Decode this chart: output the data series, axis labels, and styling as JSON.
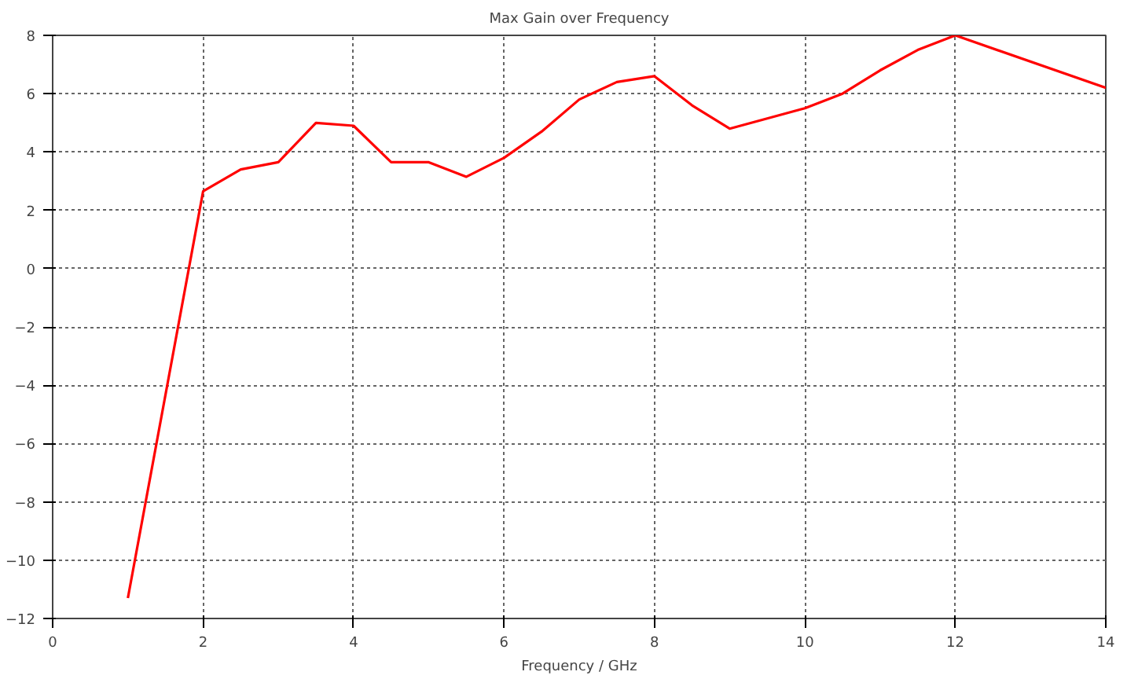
{
  "chart_data": {
    "type": "line",
    "title": "Max Gain over Frequency",
    "xlabel": "Frequency / GHz",
    "x": [
      1,
      2,
      2.5,
      3,
      3.5,
      4,
      4.5,
      5,
      5.5,
      6,
      6.5,
      7,
      7.5,
      8,
      8.5,
      9,
      10,
      10.5,
      11,
      11.5,
      12,
      14
    ],
    "series": [
      {
        "color": "#ff0000",
        "values": [
          -11.3,
          2.65,
          3.4,
          3.65,
          5.0,
          4.9,
          3.65,
          3.65,
          3.15,
          3.8,
          4.7,
          5.8,
          6.4,
          6.6,
          5.6,
          4.8,
          5.5,
          6.0,
          6.8,
          7.5,
          8.0,
          6.2
        ]
      }
    ],
    "xlim": [
      0,
      14
    ],
    "xticks": [
      0,
      2,
      4,
      6,
      8,
      10,
      12,
      14
    ],
    "ylim": [
      -12,
      8
    ],
    "yticks": [
      -12,
      -10,
      -8,
      -6,
      -4,
      -2,
      0,
      2,
      4,
      6,
      8
    ],
    "grid": true,
    "marker": "none",
    "line_style": "solid"
  }
}
